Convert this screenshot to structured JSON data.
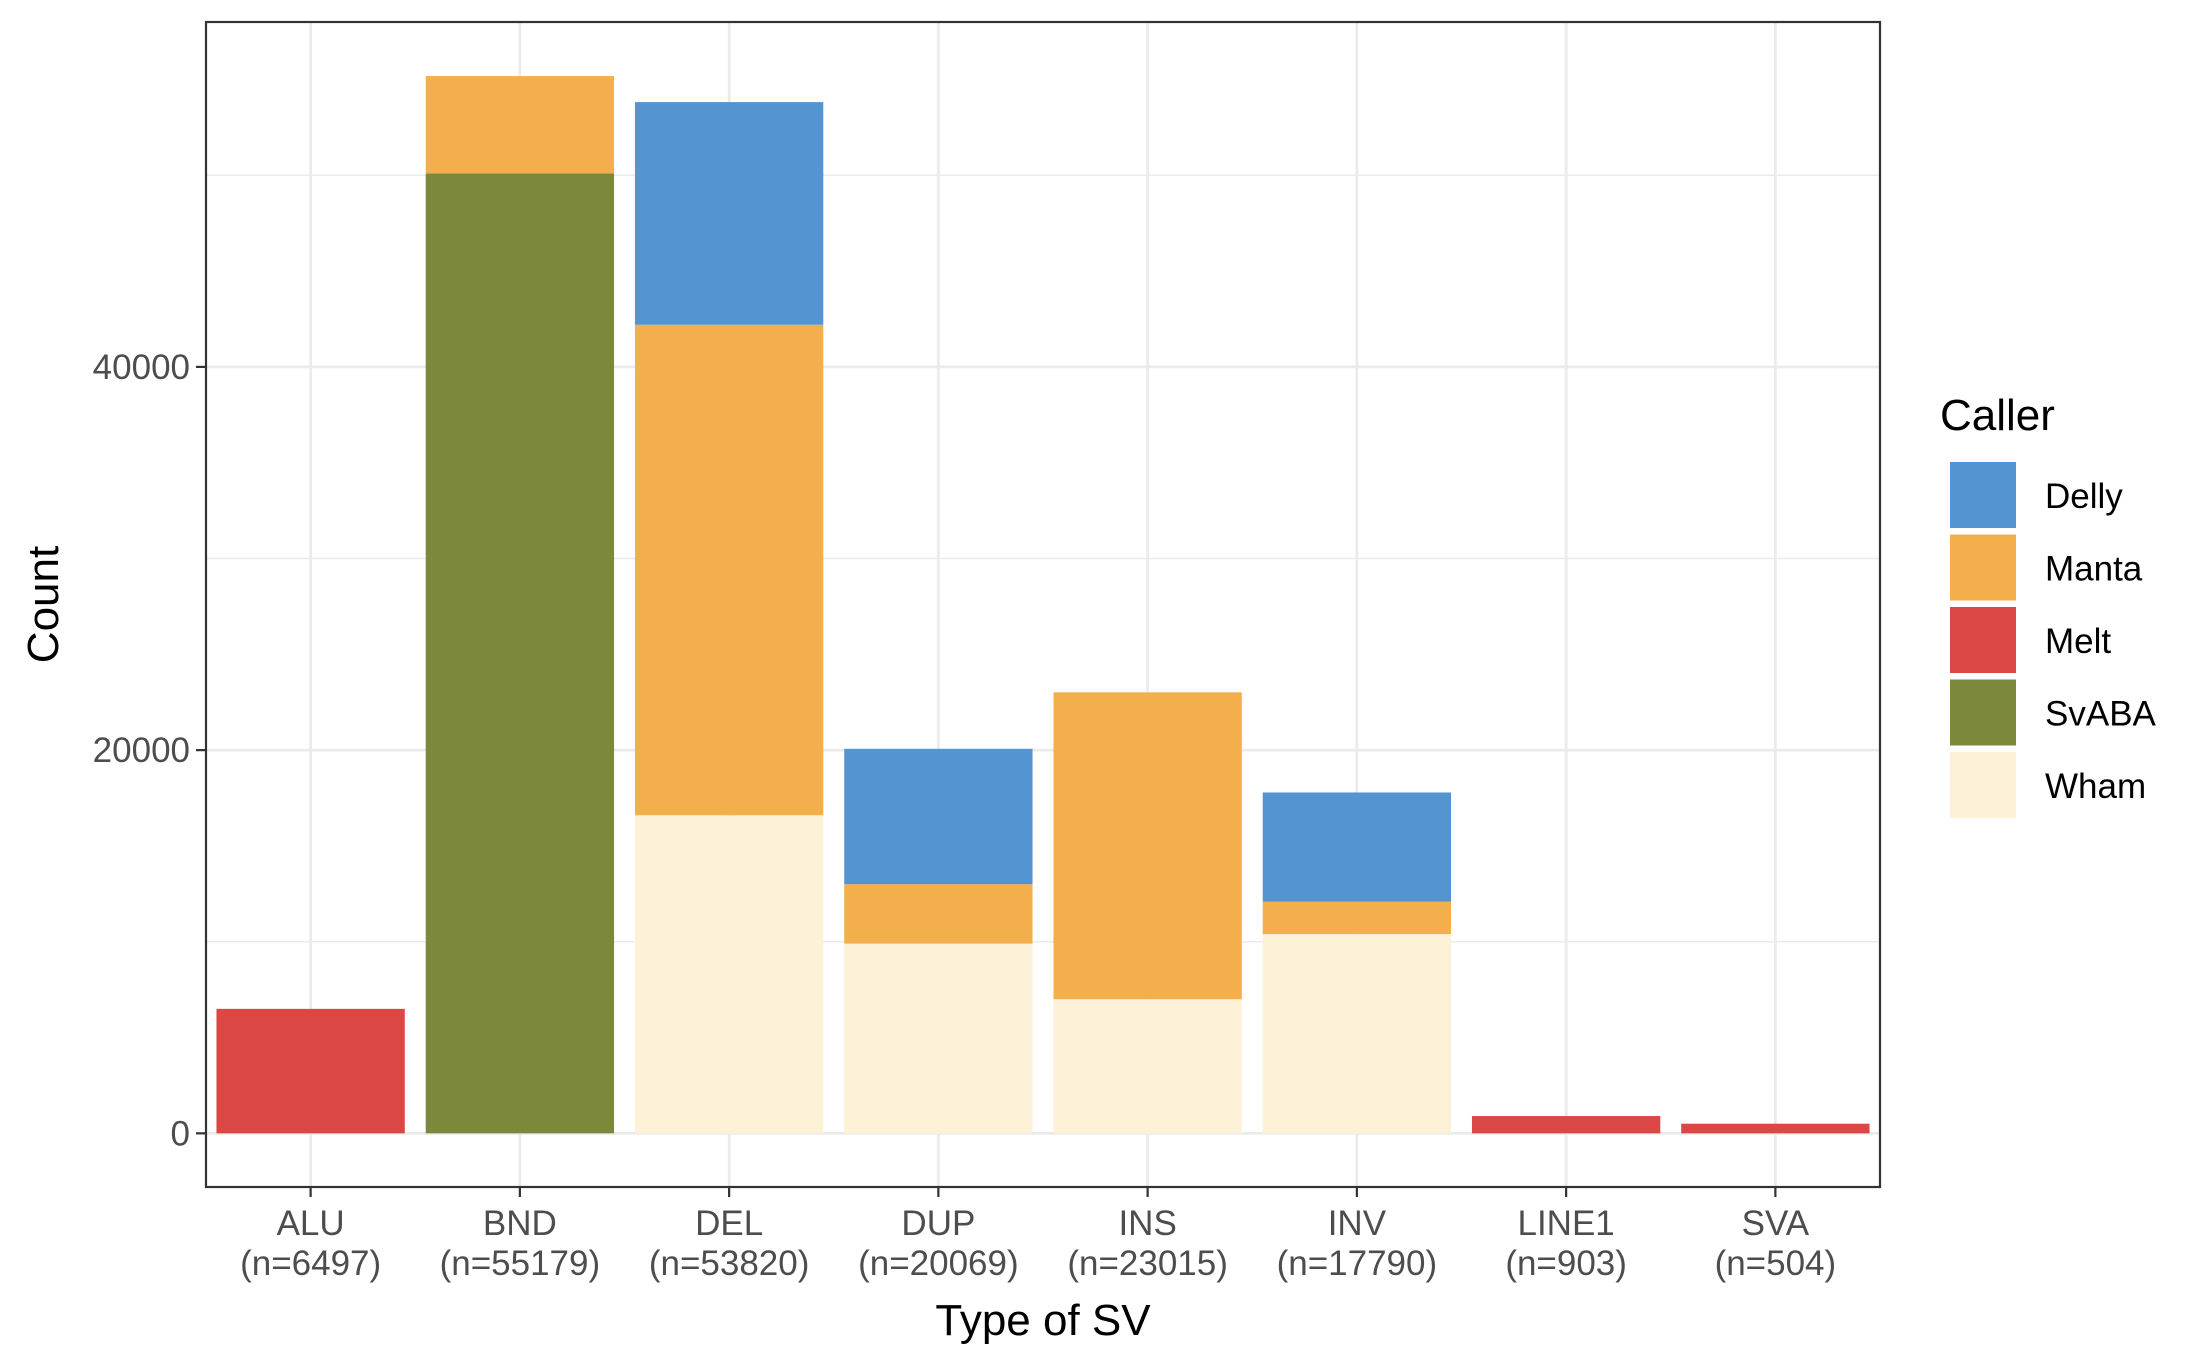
{
  "chart_data": {
    "type": "bar",
    "stacked": true,
    "categories": [
      "ALU",
      "BND",
      "DEL",
      "DUP",
      "INS",
      "INV",
      "LINE1",
      "SVA"
    ],
    "category_counts": [
      "(n=6497)",
      "(n=55179)",
      "(n=53820)",
      "(n=20069)",
      "(n=23015)",
      "(n=17790)",
      "(n=903)",
      "(n=504)"
    ],
    "series": [
      {
        "name": "Wham",
        "color": "#FDF2D7",
        "values": [
          0,
          0,
          16600,
          9900,
          7000,
          10400,
          0,
          0
        ]
      },
      {
        "name": "Melt",
        "color": "#DA4744",
        "values": [
          6497,
          0,
          0,
          0,
          0,
          0,
          903,
          504
        ]
      },
      {
        "name": "SvABA",
        "color": "#7C883C",
        "values": [
          0,
          50100,
          0,
          0,
          0,
          0,
          0,
          0
        ]
      },
      {
        "name": "Manta",
        "color": "#F4AF4D",
        "values": [
          0,
          5079,
          25600,
          3100,
          16015,
          1700,
          0,
          0
        ]
      },
      {
        "name": "Delly",
        "color": "#5495D1",
        "values": [
          0,
          0,
          11620,
          7069,
          0,
          5690,
          0,
          0
        ]
      }
    ],
    "legend_order": [
      "Delly",
      "Manta",
      "Melt",
      "SvABA",
      "Wham"
    ],
    "xlabel": "Type of SV",
    "ylabel": "Count",
    "ylim": [
      -2800,
      58000
    ],
    "yticks": [
      0,
      20000,
      40000
    ],
    "yticks_minor": [
      10000,
      30000,
      50000
    ],
    "grid": true,
    "legend_title": "Caller",
    "legend_position": "right"
  }
}
